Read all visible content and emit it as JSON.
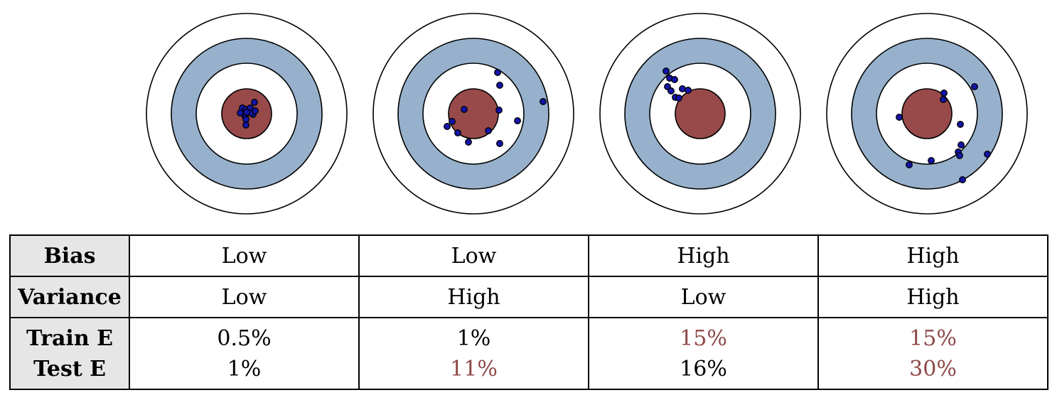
{
  "colors": {
    "bullseye": "#984a4a",
    "ring": "#97b1cc",
    "dot": "#1414a8",
    "high_text": "#8e4848"
  },
  "targets": [
    {
      "name": "low-bias-low-variance",
      "points": [
        [
          -6,
          -8
        ],
        [
          -9,
          -1
        ],
        [
          -1,
          -6
        ],
        [
          5,
          -8
        ],
        [
          7,
          -1
        ],
        [
          9,
          1
        ],
        [
          -2,
          4
        ],
        [
          -1,
          8
        ],
        [
          -1,
          16
        ],
        [
          6,
          -1
        ],
        [
          0,
          -2
        ],
        [
          11,
          -16
        ],
        [
          12,
          -4
        ]
      ]
    },
    {
      "name": "low-bias-high-variance",
      "points": [
        [
          34,
          -58
        ],
        [
          37,
          -40
        ],
        [
          98,
          -17
        ],
        [
          -13,
          -6
        ],
        [
          36,
          -5
        ],
        [
          -30,
          11
        ],
        [
          -37,
          18
        ],
        [
          62,
          10
        ],
        [
          -22,
          27
        ],
        [
          21,
          24
        ],
        [
          -7,
          40
        ],
        [
          37,
          42
        ]
      ]
    },
    {
      "name": "high-bias-low-variance",
      "points": [
        [
          -48,
          -60
        ],
        [
          -43,
          -50
        ],
        [
          -36,
          -48
        ],
        [
          -46,
          -38
        ],
        [
          -41,
          -32
        ],
        [
          -35,
          -23
        ],
        [
          -30,
          -22
        ],
        [
          -25,
          -35
        ],
        [
          -17,
          -33
        ]
      ]
    },
    {
      "name": "high-bias-high-variance",
      "points": [
        [
          24,
          -29
        ],
        [
          67,
          -38
        ],
        [
          23,
          -20
        ],
        [
          -39,
          5
        ],
        [
          47,
          15
        ],
        [
          48,
          44
        ],
        [
          44,
          54
        ],
        [
          85,
          57
        ],
        [
          46,
          59
        ],
        [
          6,
          66
        ],
        [
          -25,
          72
        ],
        [
          50,
          93
        ]
      ]
    }
  ],
  "table": {
    "rows": [
      {
        "header": "Bias",
        "cells": [
          {
            "text": "Low",
            "level": "low"
          },
          {
            "text": "Low",
            "level": "low"
          },
          {
            "text": "High",
            "level": "high"
          },
          {
            "text": "High",
            "level": "high"
          }
        ]
      },
      {
        "header": "Variance",
        "cells": [
          {
            "text": "Low",
            "level": "low"
          },
          {
            "text": "High",
            "level": "high"
          },
          {
            "text": "Low",
            "level": "low"
          },
          {
            "text": "High",
            "level": "high"
          }
        ]
      }
    ],
    "error_row": {
      "train_label": "Train E",
      "test_label": "Test E",
      "cells": [
        {
          "train": "0.5%",
          "train_level": "low",
          "test": "1%",
          "test_level": "low"
        },
        {
          "train": "1%",
          "train_level": "low",
          "test": "11%",
          "test_level": "high"
        },
        {
          "train": "15%",
          "train_level": "high",
          "test": "16%",
          "test_level": "low"
        },
        {
          "train": "15%",
          "train_level": "high",
          "test": "30%",
          "test_level": "high"
        }
      ]
    }
  }
}
